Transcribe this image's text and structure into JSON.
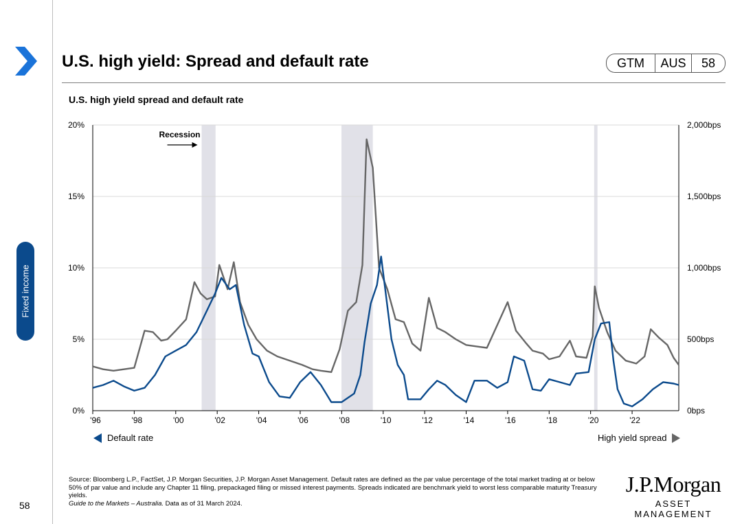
{
  "header": {
    "title": "U.S. high yield: Spread and default rate",
    "badge": [
      "GTM",
      "AUS",
      "58"
    ]
  },
  "sidebar": {
    "section_label": "Fixed income",
    "page_number": "58"
  },
  "chart_data": {
    "type": "line",
    "title": "U.S. high yield spread and default rate",
    "x_ticks": [
      "'96",
      "'98",
      "'00",
      "'02",
      "'04",
      "'06",
      "'08",
      "'10",
      "'12",
      "'14",
      "'16",
      "'18",
      "'20",
      "'22"
    ],
    "x_range": [
      1996.0,
      2024.25
    ],
    "y_left": {
      "ticks": [
        "0%",
        "5%",
        "10%",
        "15%",
        "20%"
      ],
      "range": [
        0,
        20
      ]
    },
    "y_right": {
      "ticks": [
        "0bps",
        "500bps",
        "1,000bps",
        "1,500bps",
        "2,000bps"
      ],
      "range": [
        0,
        2000
      ]
    },
    "grid": true,
    "recessions": [
      {
        "start": 2001.25,
        "end": 2001.92
      },
      {
        "start": 2007.99,
        "end": 2009.5
      },
      {
        "start": 2020.17,
        "end": 2020.33
      }
    ],
    "recession_label": "Recession",
    "series": [
      {
        "name": "Default rate",
        "axis": "left",
        "color": "#0b4a8c",
        "points": [
          [
            1996.0,
            1.6
          ],
          [
            1996.5,
            1.8
          ],
          [
            1997.0,
            2.1
          ],
          [
            1997.5,
            1.7
          ],
          [
            1998.0,
            1.4
          ],
          [
            1998.5,
            1.6
          ],
          [
            1999.0,
            2.5
          ],
          [
            1999.5,
            3.8
          ],
          [
            2000.0,
            4.2
          ],
          [
            2000.5,
            4.6
          ],
          [
            2001.0,
            5.5
          ],
          [
            2001.5,
            7.0
          ],
          [
            2001.9,
            8.2
          ],
          [
            2002.2,
            9.3
          ],
          [
            2002.6,
            8.5
          ],
          [
            2002.9,
            8.8
          ],
          [
            2003.3,
            6.0
          ],
          [
            2003.7,
            4.0
          ],
          [
            2004.0,
            3.8
          ],
          [
            2004.5,
            2.0
          ],
          [
            2005.0,
            1.0
          ],
          [
            2005.5,
            0.9
          ],
          [
            2006.0,
            2.0
          ],
          [
            2006.5,
            2.7
          ],
          [
            2007.0,
            1.8
          ],
          [
            2007.5,
            0.6
          ],
          [
            2008.0,
            0.6
          ],
          [
            2008.3,
            0.9
          ],
          [
            2008.6,
            1.2
          ],
          [
            2008.9,
            2.5
          ],
          [
            2009.1,
            4.8
          ],
          [
            2009.4,
            7.5
          ],
          [
            2009.7,
            8.8
          ],
          [
            2009.9,
            10.8
          ],
          [
            2010.1,
            8.5
          ],
          [
            2010.4,
            5.0
          ],
          [
            2010.7,
            3.2
          ],
          [
            2011.0,
            2.5
          ],
          [
            2011.2,
            0.8
          ],
          [
            2011.8,
            0.8
          ],
          [
            2012.2,
            1.5
          ],
          [
            2012.6,
            2.1
          ],
          [
            2013.0,
            1.8
          ],
          [
            2013.5,
            1.1
          ],
          [
            2014.0,
            0.6
          ],
          [
            2014.4,
            2.1
          ],
          [
            2015.0,
            2.1
          ],
          [
            2015.5,
            1.6
          ],
          [
            2016.0,
            2.0
          ],
          [
            2016.3,
            3.8
          ],
          [
            2016.8,
            3.5
          ],
          [
            2017.2,
            1.5
          ],
          [
            2017.6,
            1.4
          ],
          [
            2018.0,
            2.2
          ],
          [
            2018.5,
            2.0
          ],
          [
            2019.0,
            1.8
          ],
          [
            2019.3,
            2.6
          ],
          [
            2019.9,
            2.7
          ],
          [
            2020.2,
            5.0
          ],
          [
            2020.5,
            6.1
          ],
          [
            2020.9,
            6.2
          ],
          [
            2021.1,
            3.5
          ],
          [
            2021.3,
            1.5
          ],
          [
            2021.6,
            0.5
          ],
          [
            2022.0,
            0.3
          ],
          [
            2022.5,
            0.8
          ],
          [
            2023.0,
            1.5
          ],
          [
            2023.5,
            2.0
          ],
          [
            2024.0,
            1.9
          ],
          [
            2024.25,
            1.8
          ]
        ]
      },
      {
        "name": "High yield spread",
        "axis": "right",
        "color": "#666666",
        "points": [
          [
            1996.0,
            310
          ],
          [
            1996.5,
            290
          ],
          [
            1997.0,
            280
          ],
          [
            1997.5,
            290
          ],
          [
            1998.0,
            300
          ],
          [
            1998.5,
            560
          ],
          [
            1998.9,
            550
          ],
          [
            1999.3,
            490
          ],
          [
            1999.6,
            500
          ],
          [
            2000.0,
            560
          ],
          [
            2000.5,
            640
          ],
          [
            2000.9,
            900
          ],
          [
            2001.2,
            820
          ],
          [
            2001.5,
            780
          ],
          [
            2001.9,
            800
          ],
          [
            2002.1,
            1020
          ],
          [
            2002.5,
            850
          ],
          [
            2002.8,
            1040
          ],
          [
            2003.1,
            760
          ],
          [
            2003.5,
            600
          ],
          [
            2003.9,
            500
          ],
          [
            2004.4,
            420
          ],
          [
            2004.9,
            380
          ],
          [
            2005.3,
            360
          ],
          [
            2005.7,
            340
          ],
          [
            2006.1,
            320
          ],
          [
            2006.6,
            290
          ],
          [
            2007.0,
            280
          ],
          [
            2007.5,
            270
          ],
          [
            2007.9,
            430
          ],
          [
            2008.3,
            700
          ],
          [
            2008.7,
            760
          ],
          [
            2009.0,
            1020
          ],
          [
            2009.2,
            1900
          ],
          [
            2009.5,
            1700
          ],
          [
            2009.8,
            1000
          ],
          [
            2010.2,
            850
          ],
          [
            2010.6,
            640
          ],
          [
            2011.0,
            620
          ],
          [
            2011.4,
            470
          ],
          [
            2011.8,
            420
          ],
          [
            2012.2,
            790
          ],
          [
            2012.6,
            580
          ],
          [
            2013.0,
            550
          ],
          [
            2013.5,
            500
          ],
          [
            2014.0,
            460
          ],
          [
            2014.5,
            450
          ],
          [
            2015.0,
            440
          ],
          [
            2015.5,
            600
          ],
          [
            2016.0,
            760
          ],
          [
            2016.4,
            560
          ],
          [
            2016.9,
            470
          ],
          [
            2017.2,
            420
          ],
          [
            2017.7,
            400
          ],
          [
            2018.0,
            360
          ],
          [
            2018.5,
            380
          ],
          [
            2019.0,
            490
          ],
          [
            2019.3,
            380
          ],
          [
            2019.8,
            370
          ],
          [
            2020.1,
            520
          ],
          [
            2020.2,
            870
          ],
          [
            2020.4,
            720
          ],
          [
            2020.8,
            550
          ],
          [
            2021.2,
            420
          ],
          [
            2021.7,
            350
          ],
          [
            2022.2,
            330
          ],
          [
            2022.6,
            380
          ],
          [
            2022.9,
            570
          ],
          [
            2023.3,
            510
          ],
          [
            2023.7,
            460
          ],
          [
            2024.0,
            370
          ],
          [
            2024.25,
            320
          ]
        ]
      }
    ]
  },
  "legend": {
    "left": "Default rate",
    "right": "High yield spread"
  },
  "footer": {
    "source": "Source: Bloomberg L.P., FactSet, J.P. Morgan Securities, J.P. Morgan Asset Management. Default rates are defined as the par value percentage of the total market trading at or below 50% of par value and include any Chapter 11 filing, prepackaged filing or missed interest payments. Spreads indicated are benchmark yield to worst less comparable maturity Treasury yields.",
    "guide": "Guide to the Markets – Australia.",
    "date": " Data as of 31 March 2024."
  },
  "logo": {
    "line1": "J.P.Morgan",
    "line2": "ASSET MANAGEMENT"
  },
  "colors": {
    "accent": "#0b4a8c",
    "spread": "#666666",
    "recession": "#e1e1e8"
  }
}
